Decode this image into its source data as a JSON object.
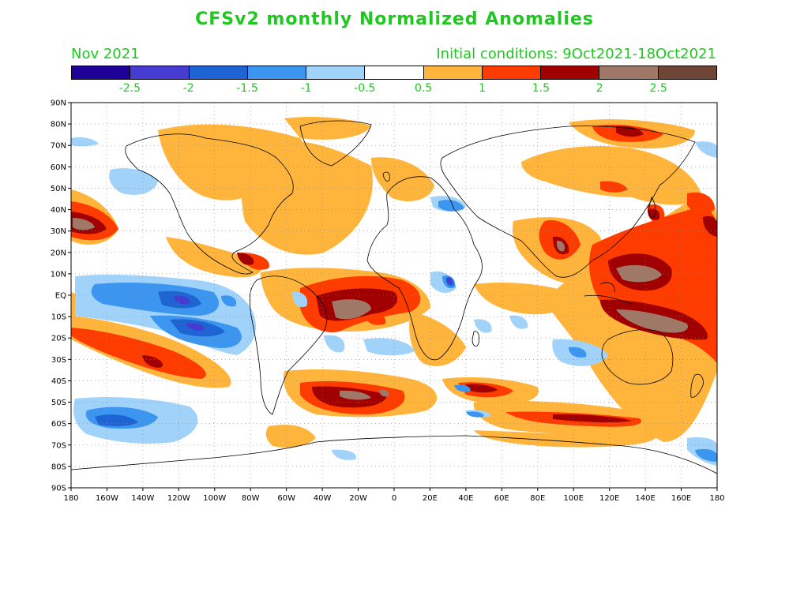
{
  "title": "CFSv2 monthly Normalized Anomalies",
  "valid_month": "Nov 2021",
  "initial_conditions": "Initial conditions: 9Oct2021-18Oct2021",
  "colorbar": {
    "colors": [
      "#1e0096",
      "#463cd2",
      "#1e64d2",
      "#3c96f0",
      "#a0d2fa",
      "#ffffff",
      "#ffb43c",
      "#ff3c00",
      "#a00000",
      "#a07868",
      "#6e4636"
    ],
    "labels": [
      "-2.5",
      "-2",
      "-1.5",
      "-1",
      "-0.5",
      "0.5",
      "1",
      "1.5",
      "2",
      "2.5"
    ]
  },
  "map": {
    "lat_labels": [
      "90N",
      "80N",
      "70N",
      "60N",
      "50N",
      "40N",
      "30N",
      "20N",
      "10N",
      "EQ",
      "10S",
      "20S",
      "30S",
      "40S",
      "50S",
      "60S",
      "70S",
      "80S",
      "90S"
    ],
    "lon_labels": [
      "180",
      "160W",
      "140W",
      "120W",
      "100W",
      "80W",
      "60W",
      "40W",
      "20W",
      "0",
      "20E",
      "40E",
      "60E",
      "80E",
      "100E",
      "120E",
      "140E",
      "160E",
      "180"
    ]
  }
}
